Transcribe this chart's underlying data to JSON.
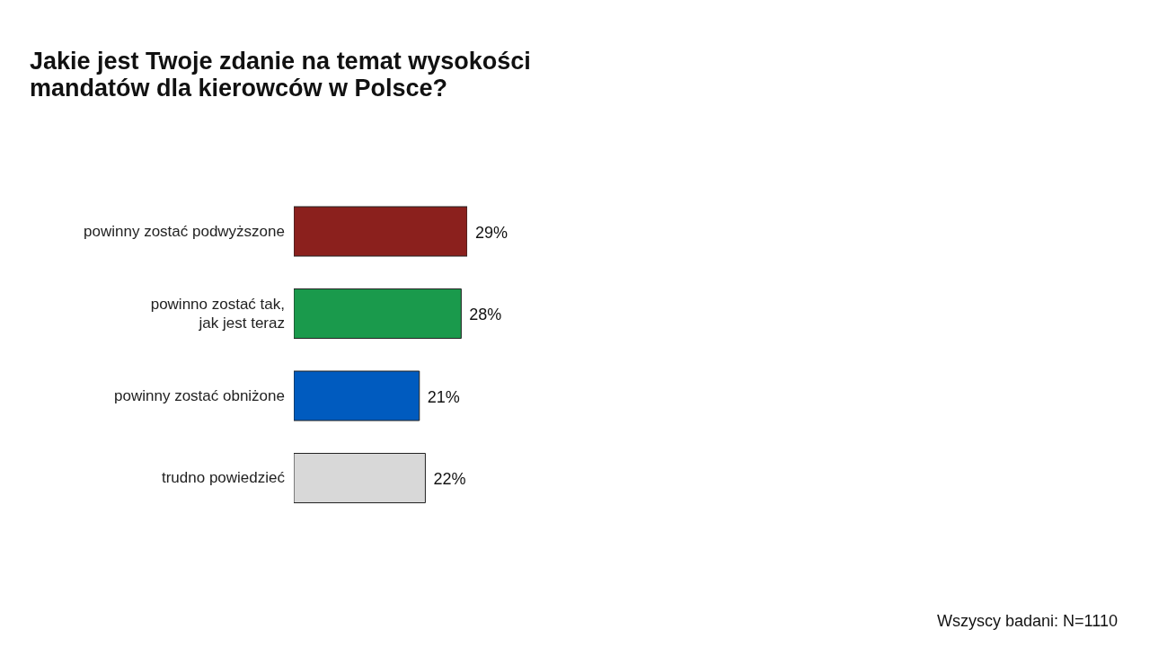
{
  "chart_data": {
    "type": "bar",
    "orientation": "horizontal",
    "title": "Jakie jest Twoje zdanie na temat wysokości mandatów dla kierowców w Polsce?",
    "categories": [
      "powinny zostać podwyższone",
      "powinno zostać tak, jak jest teraz",
      "powinny zostać obniżone",
      "trudno powiedzieć"
    ],
    "values": [
      29,
      28,
      21,
      22
    ],
    "colors": [
      "#8b201d",
      "#1a9a4c",
      "#005bbf",
      "#d8d8d8"
    ],
    "value_labels": [
      "29%",
      "28%",
      "21%",
      "22%"
    ],
    "tick_labels": "y",
    "annotations": [
      "Wszyscy badani: N=1110"
    ]
  }
}
